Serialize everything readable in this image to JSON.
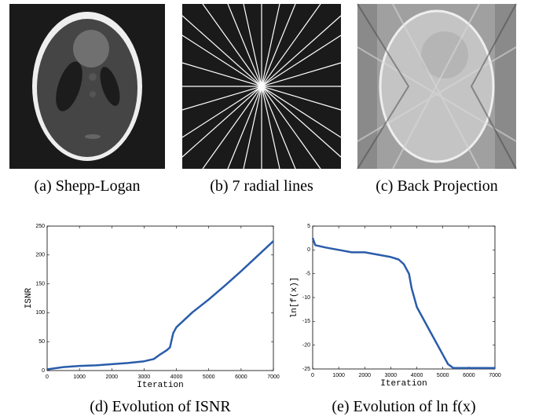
{
  "images": [
    {
      "caption": "(a) Shepp-Logan"
    },
    {
      "caption": "(b) 7 radial lines"
    },
    {
      "caption": "(c) Back Projection"
    }
  ],
  "chart_data": [
    {
      "type": "line",
      "caption": "(d) Evolution of ISNR",
      "x_label": "Iteration",
      "y_label": "ISNR",
      "x": [
        0,
        500,
        1000,
        1500,
        2000,
        2500,
        3000,
        3300,
        3500,
        3700,
        3800,
        3900,
        4000,
        4500,
        5000,
        5500,
        6000,
        6500,
        7000
      ],
      "series": [
        {
          "color": "#2a5caa",
          "values": [
            2,
            6,
            8,
            9,
            11,
            13,
            16,
            20,
            28,
            35,
            40,
            65,
            75,
            101,
            123,
            147,
            172,
            198,
            224
          ]
        }
      ],
      "xlim": [
        0,
        7000
      ],
      "xticks": [
        0,
        1000,
        2000,
        3000,
        4000,
        5000,
        6000,
        7000
      ],
      "ylim": [
        0,
        250
      ],
      "yticks": [
        0,
        50,
        100,
        150,
        200,
        250
      ]
    },
    {
      "type": "line",
      "caption": "(e) Evolution of ln f(x)",
      "x_label": "Iteration",
      "y_label": "ln[f(x)]",
      "x": [
        0,
        100,
        500,
        1000,
        1500,
        2000,
        2500,
        3000,
        3300,
        3500,
        3700,
        3800,
        4000,
        4500,
        5000,
        5200,
        5400,
        6000,
        7000
      ],
      "series": [
        {
          "color": "#2a5caa",
          "values": [
            2.5,
            1,
            0.5,
            0,
            -0.5,
            -0.5,
            -1,
            -1.5,
            -2,
            -3,
            -5,
            -8,
            -12,
            -17,
            -22,
            -24,
            -24.8,
            -24.8,
            -24.8
          ]
        }
      ],
      "xlim": [
        0,
        7000
      ],
      "xticks": [
        0,
        1000,
        2000,
        3000,
        4000,
        5000,
        6000,
        7000
      ],
      "ylim": [
        -25,
        5
      ],
      "yticks": [
        -25,
        -20,
        -15,
        -10,
        -5,
        0,
        5
      ]
    }
  ]
}
